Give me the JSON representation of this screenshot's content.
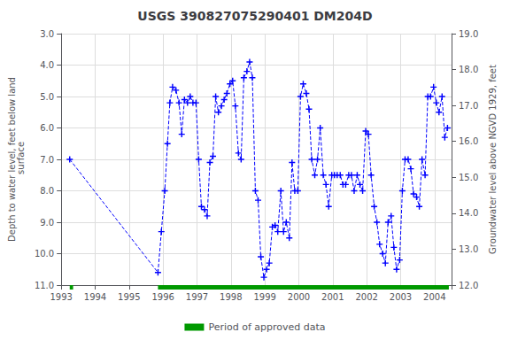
{
  "chart_data": {
    "type": "line",
    "title": "USGS 390827075290401 DM204D",
    "ylabel": "Depth to water level, feet below land\n surface",
    "y2label": "Groundwater level above NGVD 1929, feet",
    "xlim": [
      1993.0,
      2004.5
    ],
    "xticks": [
      1993,
      1994,
      1995,
      1996,
      1997,
      1998,
      1999,
      2000,
      2001,
      2002,
      2003,
      2004
    ],
    "ylim": [
      11.0,
      3.0
    ],
    "yticks": [
      {
        "value": 3.0,
        "label": "3.0"
      },
      {
        "value": 4.0,
        "label": "4.0"
      },
      {
        "value": 5.0,
        "label": "5.0"
      },
      {
        "value": 6.0,
        "label": "6.0"
      },
      {
        "value": 7.0,
        "label": "7.0"
      },
      {
        "value": 8.0,
        "label": "8.0"
      },
      {
        "value": 9.0,
        "label": "9.0"
      },
      {
        "value": 10.0,
        "label": "10.0"
      },
      {
        "value": 11.0,
        "label": "11.0"
      }
    ],
    "y2lim": [
      12.0,
      19.0
    ],
    "y2ticks": [
      {
        "value": 19.0,
        "label": "19.0"
      },
      {
        "value": 18.0,
        "label": "18.0"
      },
      {
        "value": 17.0,
        "label": "17.0"
      },
      {
        "value": 16.0,
        "label": "16.0"
      },
      {
        "value": 15.0,
        "label": "15.0"
      },
      {
        "value": 14.0,
        "label": "14.0"
      },
      {
        "value": 13.0,
        "label": "13.0"
      },
      {
        "value": 12.0,
        "label": "12.0"
      }
    ],
    "grid": true,
    "legend": "bottom",
    "x": [
      1993.25,
      1995.85,
      1995.95,
      1996.05,
      1996.13,
      1996.2,
      1996.28,
      1996.38,
      1996.47,
      1996.55,
      1996.63,
      1996.72,
      1996.8,
      1996.88,
      1996.97,
      1997.05,
      1997.13,
      1997.22,
      1997.3,
      1997.38,
      1997.47,
      1997.55,
      1997.63,
      1997.72,
      1997.8,
      1997.88,
      1997.97,
      1998.05,
      1998.13,
      1998.22,
      1998.3,
      1998.38,
      1998.47,
      1998.55,
      1998.63,
      1998.72,
      1998.8,
      1998.88,
      1998.97,
      1999.05,
      1999.13,
      1999.22,
      1999.3,
      1999.38,
      1999.47,
      1999.55,
      1999.63,
      1999.72,
      1999.8,
      1999.88,
      1999.97,
      2000.05,
      2000.13,
      2000.22,
      2000.3,
      2000.38,
      2000.47,
      2000.55,
      2000.63,
      2000.72,
      2000.8,
      2000.88,
      2000.97,
      2001.05,
      2001.13,
      2001.22,
      2001.3,
      2001.38,
      2001.47,
      2001.55,
      2001.63,
      2001.72,
      2001.8,
      2001.88,
      2001.97,
      2002.05,
      2002.13,
      2002.22,
      2002.3,
      2002.38,
      2002.47,
      2002.55,
      2002.63,
      2002.72,
      2002.8,
      2002.88,
      2002.97,
      2003.05,
      2003.13,
      2003.22,
      2003.3,
      2003.38,
      2003.47,
      2003.55,
      2003.63,
      2003.72,
      2003.8,
      2003.88,
      2003.97,
      2004.05,
      2004.13,
      2004.22,
      2004.3,
      2004.38
    ],
    "series": [
      {
        "type": "line",
        "color": "#0000ff",
        "marker": "plus",
        "line_style": "dashed",
        "values": [
          7.0,
          10.6,
          9.3,
          8.0,
          6.5,
          5.2,
          4.7,
          4.8,
          5.2,
          6.2,
          5.1,
          5.2,
          5.0,
          5.2,
          5.2,
          7.0,
          8.5,
          8.6,
          8.8,
          7.1,
          6.9,
          5.0,
          5.5,
          5.3,
          5.1,
          4.9,
          4.6,
          4.5,
          5.3,
          6.8,
          7.0,
          4.4,
          4.2,
          3.9,
          4.4,
          8.0,
          8.3,
          10.1,
          10.75,
          10.5,
          10.3,
          9.15,
          9.1,
          9.3,
          8.0,
          9.3,
          9.0,
          9.5,
          7.1,
          8.0,
          8.0,
          5.0,
          4.6,
          4.9,
          5.4,
          7.0,
          7.5,
          7.0,
          6.0,
          7.5,
          7.8,
          8.5,
          7.5,
          7.5,
          7.5,
          7.5,
          7.8,
          7.8,
          7.5,
          7.5,
          8.0,
          7.5,
          7.8,
          8.0,
          6.1,
          6.2,
          7.5,
          8.5,
          9.0,
          9.7,
          10.0,
          10.3,
          9.0,
          8.8,
          9.8,
          10.5,
          10.2,
          8.0,
          7.0,
          7.0,
          7.3,
          8.1,
          8.2,
          8.5,
          7.0,
          7.5,
          5.0,
          5.0,
          4.7,
          5.2,
          5.5,
          5.0,
          6.3,
          6.0
        ]
      },
      {
        "type": "band",
        "name": "Period of approved data",
        "color": "#009900",
        "ranges": [
          [
            1993.25,
            1993.35
          ],
          [
            1995.85,
            2004.42
          ]
        ]
      }
    ]
  }
}
